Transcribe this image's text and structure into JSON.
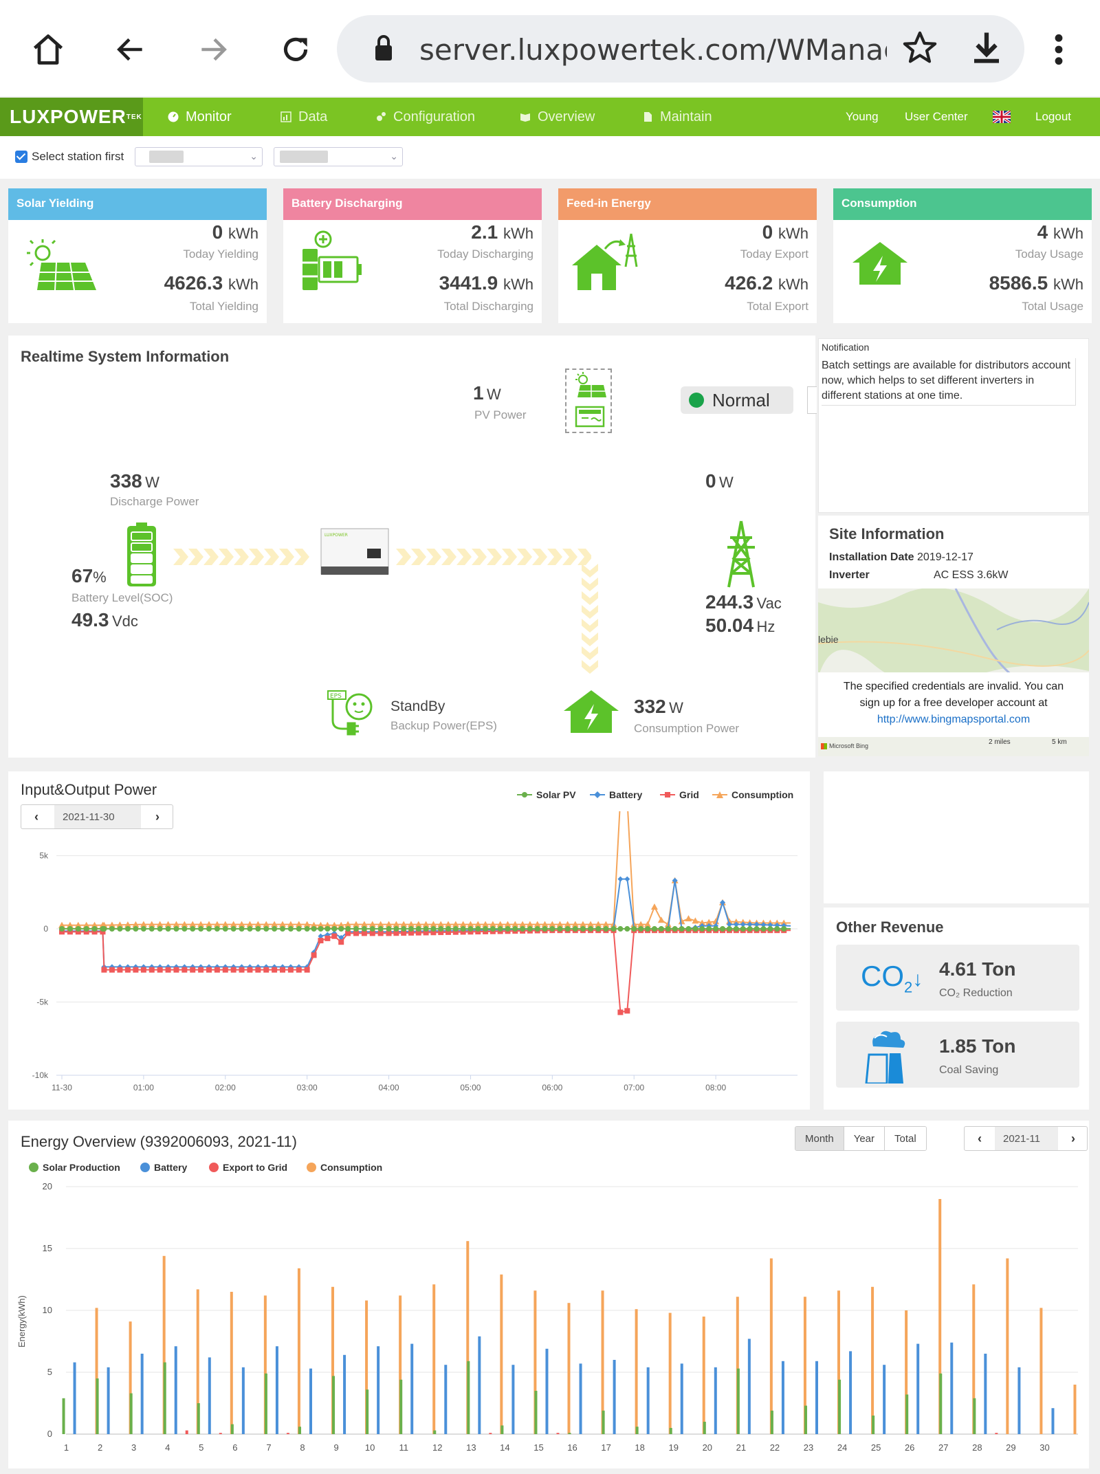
{
  "browser": {
    "url": "server.luxpowertek.com/WManage/we"
  },
  "nav": {
    "logo": "LUXPOWER",
    "logo_sup": "TEK",
    "items": [
      {
        "label": "Monitor"
      },
      {
        "label": "Data"
      },
      {
        "label": "Configuration"
      },
      {
        "label": "Overview"
      },
      {
        "label": "Maintain"
      }
    ],
    "user": "Young",
    "user_center": "User Center",
    "logout": "Logout"
  },
  "station": {
    "checkbox_label": "Select station first"
  },
  "cards": [
    {
      "title": "Solar Yielding",
      "color": "#5fbbe6",
      "today_value": "0",
      "today_unit": "kWh",
      "today_label": "Today Yielding",
      "total_value": "4626.3",
      "total_unit": "kWh",
      "total_label": "Total Yielding"
    },
    {
      "title": "Battery Discharging",
      "color": "#ef85a0",
      "today_value": "2.1",
      "today_unit": "kWh",
      "today_label": "Today Discharging",
      "total_value": "3441.9",
      "total_unit": "kWh",
      "total_label": "Total Discharging"
    },
    {
      "title": "Feed-in Energy",
      "color": "#f29b6a",
      "today_value": "0",
      "today_unit": "kWh",
      "today_label": "Today Export",
      "total_value": "426.2",
      "total_unit": "kWh",
      "total_label": "Total Export"
    },
    {
      "title": "Consumption",
      "color": "#4cc58f",
      "today_value": "4",
      "today_unit": "kWh",
      "today_label": "Today Usage",
      "total_value": "8586.5",
      "total_unit": "kWh",
      "total_label": "Total Usage"
    }
  ],
  "realtime": {
    "title": "Realtime System Information",
    "pv_power": "1",
    "pv_unit": "W",
    "pv_label": "PV Power",
    "status": "Normal",
    "discharge_power": "338",
    "discharge_unit": "W",
    "discharge_label": "Discharge Power",
    "soc": "67",
    "soc_unit": "%",
    "soc_label": "Battery Level(SOC)",
    "battery_voltage": "49.3",
    "battery_voltage_unit": "Vdc",
    "grid_power": "0",
    "grid_unit": "W",
    "grid_voltage": "244.3",
    "grid_voltage_unit": "Vac",
    "grid_freq": "50.04",
    "grid_freq_unit": "Hz",
    "eps_status": "StandBy",
    "eps_label": "Backup Power(EPS)",
    "consumption_power": "332",
    "consumption_unit": "W",
    "consumption_label": "Consumption Power"
  },
  "notification": {
    "title": "Notification",
    "body": "Batch settings are available for distributors account now, which helps to set different inverters in different stations at one time."
  },
  "site": {
    "title": "Site Information",
    "install_label": "Installation Date",
    "install_value": "2019-12-17",
    "inverter_label": "Inverter",
    "inverter_value": "AC ESS 3.6kW",
    "map_place": "lebie",
    "map_error_1": "The specified credentials are invalid. You can",
    "map_error_2": "sign up for a free developer account at",
    "map_link": "http://www.bingmapsportal.com",
    "map_brand": "Microsoft Bing",
    "scale_miles": "2 miles",
    "scale_km": "5 km"
  },
  "io_power": {
    "title": "Input&Output Power",
    "date": "2021-11-30",
    "legend": [
      "Solar PV",
      "Battery",
      "Grid",
      "Consumption"
    ],
    "colors": [
      "#6ab04c",
      "#4a90d9",
      "#f05a5a",
      "#f5a55a"
    ]
  },
  "revenue": {
    "title": "Other Revenue",
    "co2_value": "4.61 Ton",
    "co2_label": "CO₂ Reduction",
    "co2_icon": "CO",
    "coal_value": "1.85 Ton",
    "coal_label": "Coal Saving"
  },
  "energy": {
    "title": "Energy Overview (9392006093, 2021-11)",
    "tabs": [
      "Month",
      "Year",
      "Total"
    ],
    "active_tab": "Month",
    "period": "2021-11",
    "legend": [
      "Solar Production",
      "Battery",
      "Export to Grid",
      "Consumption"
    ],
    "ylabel": "Energy(kWh)"
  },
  "chart_data": [
    {
      "type": "line",
      "title": "Input&Output Power",
      "x_ticks": [
        "11-30",
        "01:00",
        "02:00",
        "03:00",
        "04:00",
        "05:00",
        "06:00",
        "07:00",
        "08:00"
      ],
      "y_ticks": [
        "5k",
        "0",
        "-5k",
        "-10k"
      ],
      "ylim": [
        -10000,
        7000
      ],
      "x": [
        "00:00",
        "00:30",
        "00:31",
        "01:00",
        "01:30",
        "02:00",
        "02:30",
        "03:00",
        "03:05",
        "03:10",
        "03:20",
        "03:25",
        "03:30",
        "04:00",
        "05:00",
        "06:00",
        "06:45",
        "06:50",
        "06:55",
        "07:00",
        "07:10",
        "07:15",
        "07:20",
        "07:25",
        "07:30",
        "07:35",
        "07:40",
        "07:50",
        "08:00",
        "08:05",
        "08:10",
        "08:30",
        "08:55"
      ],
      "series": [
        {
          "name": "Solar PV",
          "values": [
            0,
            0,
            0,
            0,
            0,
            0,
            0,
            0,
            0,
            0,
            0,
            0,
            0,
            0,
            0,
            0,
            0,
            0,
            0,
            0,
            0,
            0,
            0,
            0,
            0,
            0,
            0,
            0,
            0,
            0,
            0,
            0,
            0
          ]
        },
        {
          "name": "Battery",
          "values": [
            -150,
            -150,
            -2600,
            -2600,
            -2600,
            -2600,
            -2600,
            -2600,
            -1600,
            -500,
            -300,
            -600,
            -200,
            -200,
            -100,
            0,
            0,
            3400,
            3400,
            0,
            0,
            0,
            0,
            0,
            3300,
            0,
            0,
            200,
            200,
            1800,
            300,
            300,
            200
          ]
        },
        {
          "name": "Grid",
          "values": [
            -200,
            -200,
            -2800,
            -2800,
            -2800,
            -2800,
            -2800,
            -2800,
            -1800,
            -800,
            -500,
            -900,
            -300,
            -300,
            -200,
            -100,
            -100,
            -5700,
            -5600,
            -100,
            -100,
            -100,
            -100,
            -100,
            -100,
            -100,
            -100,
            -100,
            -100,
            -100,
            -100,
            -100,
            -100
          ]
        },
        {
          "name": "Consumption",
          "values": [
            250,
            250,
            250,
            300,
            300,
            300,
            300,
            300,
            250,
            250,
            250,
            250,
            300,
            300,
            300,
            300,
            300,
            8900,
            8800,
            300,
            300,
            1500,
            600,
            300,
            3300,
            500,
            700,
            400,
            500,
            1800,
            500,
            400,
            400
          ]
        }
      ]
    },
    {
      "type": "bar",
      "title": "Energy Overview (9392006093, 2021-11)",
      "ylabel": "Energy(kWh)",
      "ylim": [
        0,
        20
      ],
      "y_ticks": [
        0,
        5,
        10,
        15,
        20
      ],
      "categories": [
        "1",
        "2",
        "3",
        "4",
        "5",
        "6",
        "7",
        "8",
        "9",
        "10",
        "11",
        "12",
        "13",
        "14",
        "15",
        "16",
        "17",
        "18",
        "19",
        "20",
        "21",
        "22",
        "23",
        "24",
        "25",
        "26",
        "27",
        "28",
        "29",
        "30"
      ],
      "series": [
        {
          "name": "Solar Production",
          "values": [
            2.9,
            4.5,
            3.3,
            5.8,
            2.5,
            0.8,
            4.9,
            0.6,
            4.7,
            3.6,
            4.4,
            0.3,
            5.9,
            0.7,
            3.5,
            0.1,
            1.9,
            0.6,
            0.5,
            1.0,
            5.3,
            1.9,
            2.3,
            4.4,
            1.5,
            3.2,
            4.9,
            2.9,
            0,
            0
          ]
        },
        {
          "name": "Battery",
          "values": [
            5.8,
            5.4,
            6.5,
            7.1,
            6.2,
            5.4,
            7.1,
            5.3,
            6.4,
            7.1,
            7.3,
            5.6,
            7.9,
            5.6,
            6.9,
            5.7,
            6.0,
            5.4,
            5.7,
            5.4,
            7.7,
            5.9,
            5.9,
            6.7,
            5.6,
            7.3,
            7.4,
            6.5,
            5.4,
            2.1
          ]
        },
        {
          "name": "Export to Grid",
          "values": [
            0,
            0,
            0,
            0.3,
            0.1,
            0,
            0.1,
            0,
            0,
            0,
            0,
            0,
            0.1,
            0,
            0.1,
            0,
            0,
            0,
            0,
            0,
            0,
            0,
            0,
            0,
            0,
            0,
            0,
            0.1,
            0,
            0
          ]
        },
        {
          "name": "Consumption",
          "values": [
            10.2,
            9.1,
            14.4,
            11.7,
            11.5,
            11.2,
            13.4,
            11.9,
            10.8,
            11.2,
            12.1,
            15.6,
            12.9,
            11.6,
            10.6,
            11.6,
            10.1,
            9.8,
            9.5,
            11.1,
            14.2,
            11.1,
            11.6,
            11.9,
            10.0,
            19.0,
            12.1,
            14.2,
            10.2,
            4.0
          ]
        }
      ]
    }
  ]
}
